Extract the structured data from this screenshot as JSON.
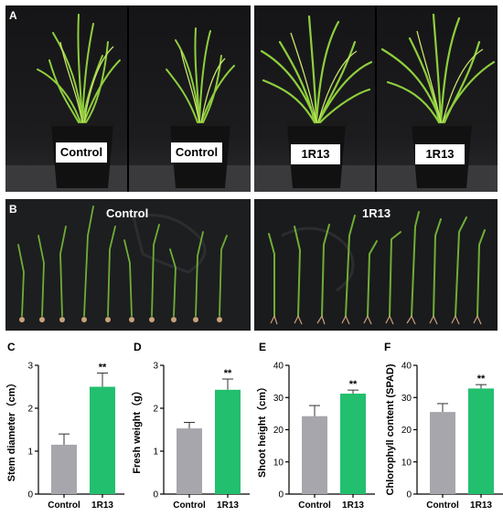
{
  "panels": {
    "A": {
      "letter": "A",
      "labels": [
        "Control",
        "Control",
        "1R13",
        "1R13"
      ]
    },
    "B": {
      "letter": "B",
      "labels": [
        "Control",
        "1R13"
      ]
    }
  },
  "chart_data": [
    {
      "letter": "C",
      "type": "bar",
      "categories": [
        "Control",
        "1R13"
      ],
      "values": [
        1.15,
        2.5
      ],
      "errors": [
        0.25,
        0.32
      ],
      "significance": [
        "",
        "**"
      ],
      "colors": [
        "#a7a6ac",
        "#22bf6e"
      ],
      "ylabel": "Stem diameter（cm）",
      "ylim": [
        0,
        3
      ],
      "yticks": [
        0,
        1,
        2,
        3
      ]
    },
    {
      "letter": "D",
      "type": "bar",
      "categories": [
        "Control",
        "1R13"
      ],
      "values": [
        1.53,
        2.43
      ],
      "errors": [
        0.14,
        0.25
      ],
      "significance": [
        "",
        "**"
      ],
      "colors": [
        "#a7a6ac",
        "#22bf6e"
      ],
      "ylabel": "Fresh weight（g）",
      "ylim": [
        0,
        3
      ],
      "yticks": [
        0,
        1,
        2,
        3
      ]
    },
    {
      "letter": "E",
      "type": "bar",
      "categories": [
        "Control",
        "1R13"
      ],
      "values": [
        24.2,
        31.2
      ],
      "errors": [
        3.3,
        1.1
      ],
      "significance": [
        "",
        "**"
      ],
      "colors": [
        "#a7a6ac",
        "#22bf6e"
      ],
      "ylabel": "Shoot height（cm）",
      "ylim": [
        0,
        40
      ],
      "yticks": [
        0,
        10,
        20,
        30,
        40
      ]
    },
    {
      "letter": "F",
      "type": "bar",
      "categories": [
        "Control",
        "1R13"
      ],
      "values": [
        25.5,
        32.8
      ],
      "errors": [
        2.6,
        1.2
      ],
      "significance": [
        "",
        "**"
      ],
      "colors": [
        "#a7a6ac",
        "#22bf6e"
      ],
      "ylabel": "Chlorophyll content (SPAD)",
      "ylim": [
        0,
        40
      ],
      "yticks": [
        0,
        10,
        20,
        30,
        40
      ]
    }
  ]
}
